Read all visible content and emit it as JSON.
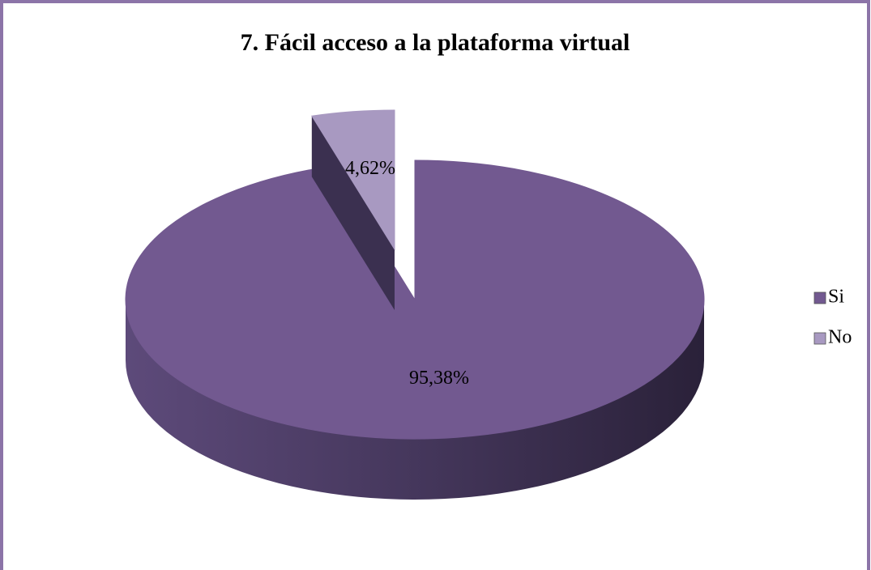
{
  "chart_data": {
    "type": "pie",
    "title": "7. Fácil acceso a la plataforma virtual",
    "categories": [
      "Si",
      "No"
    ],
    "values": [
      95.38,
      4.62
    ],
    "value_labels": [
      "95,38%",
      "4,62%"
    ],
    "colors": [
      "#725990",
      "#a899c1"
    ],
    "explode": [
      false,
      true
    ],
    "legend": "right"
  }
}
